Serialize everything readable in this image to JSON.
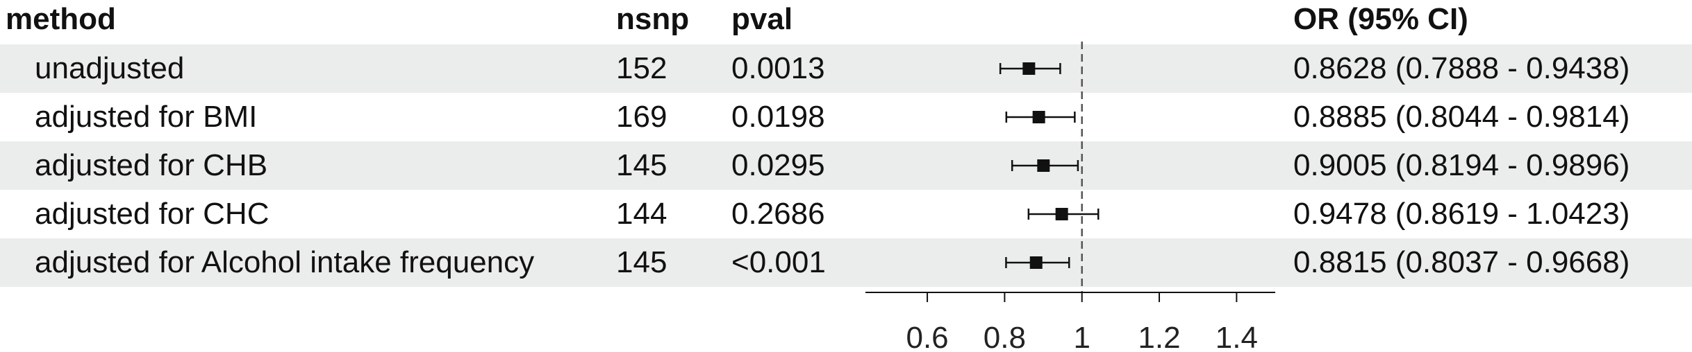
{
  "colors": {
    "band": "#ebedec",
    "ink": "#111111"
  },
  "table": {
    "headers": {
      "method": "method",
      "nsnp": "nsnp",
      "pval": "pval",
      "or_ci": "OR (95% CI)"
    },
    "rows": [
      {
        "method": "unadjusted",
        "nsnp": "152",
        "pval": "0.0013",
        "or_ci": "0.8628 (0.7888 - 0.9438)"
      },
      {
        "method": "adjusted for BMI",
        "nsnp": "169",
        "pval": "0.0198",
        "or_ci": "0.8885 (0.8044 - 0.9814)"
      },
      {
        "method": "adjusted for CHB",
        "nsnp": "145",
        "pval": "0.0295",
        "or_ci": "0.9005 (0.8194 - 0.9896)"
      },
      {
        "method": "adjusted for CHC",
        "nsnp": "144",
        "pval": "0.2686",
        "or_ci": "0.9478 (0.8619 - 1.0423)"
      },
      {
        "method": "adjusted for Alcohol intake frequency",
        "nsnp": "145",
        "pval": "<0.001",
        "or_ci": "0.8815 (0.8037 - 0.9668)"
      }
    ]
  },
  "chart_data": {
    "type": "scatter",
    "categories": [
      "unadjusted",
      "adjusted for BMI",
      "adjusted for CHB",
      "adjusted for CHC",
      "adjusted for Alcohol intake frequency"
    ],
    "series": [
      {
        "values": [
          0.8628,
          0.8885,
          0.9005,
          0.9478,
          0.8815
        ],
        "lower": [
          0.7888,
          0.8044,
          0.8194,
          0.8619,
          0.8037
        ],
        "upper": [
          0.9438,
          0.9814,
          0.9896,
          1.0423,
          0.9668
        ]
      }
    ],
    "reference_line": 1,
    "xlim": [
      0.44,
      1.5
    ],
    "xticks": [
      0.6,
      0.8,
      1,
      1.2,
      1.4
    ],
    "xtick_labels": [
      "0.6",
      "0.8",
      "1",
      "1.2",
      "1.4"
    ],
    "title": "",
    "xlabel": "",
    "ylabel": "",
    "grid": false,
    "legend": "none"
  }
}
